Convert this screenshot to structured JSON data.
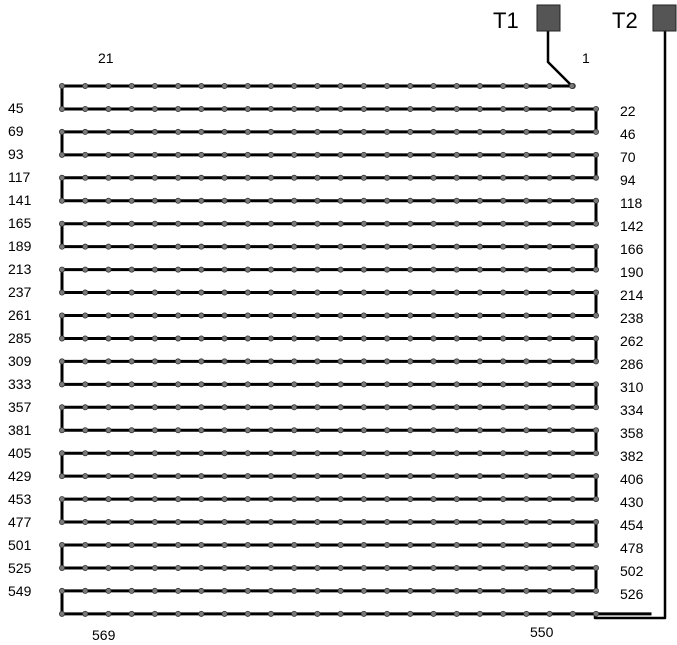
{
  "terminals": [
    {
      "label": "T1",
      "color": "#555555"
    },
    {
      "label": "T2",
      "color": "#555555"
    }
  ],
  "top_labels": {
    "left": "21",
    "right": "1"
  },
  "bottom_labels": {
    "left": "569",
    "right": "550"
  },
  "left_labels": [
    "45",
    "69",
    "93",
    "117",
    "141",
    "165",
    "189",
    "213",
    "237",
    "261",
    "285",
    "309",
    "333",
    "357",
    "381",
    "405",
    "429",
    "453",
    "477",
    "501",
    "525",
    "549"
  ],
  "right_labels": [
    "22",
    "46",
    "70",
    "94",
    "118",
    "142",
    "166",
    "190",
    "214",
    "238",
    "262",
    "286",
    "310",
    "334",
    "358",
    "382",
    "406",
    "430",
    "454",
    "478",
    "502",
    "526"
  ],
  "colors": {
    "wire": "#000000",
    "node": "#7a7a7a",
    "terminal": "#555555"
  }
}
